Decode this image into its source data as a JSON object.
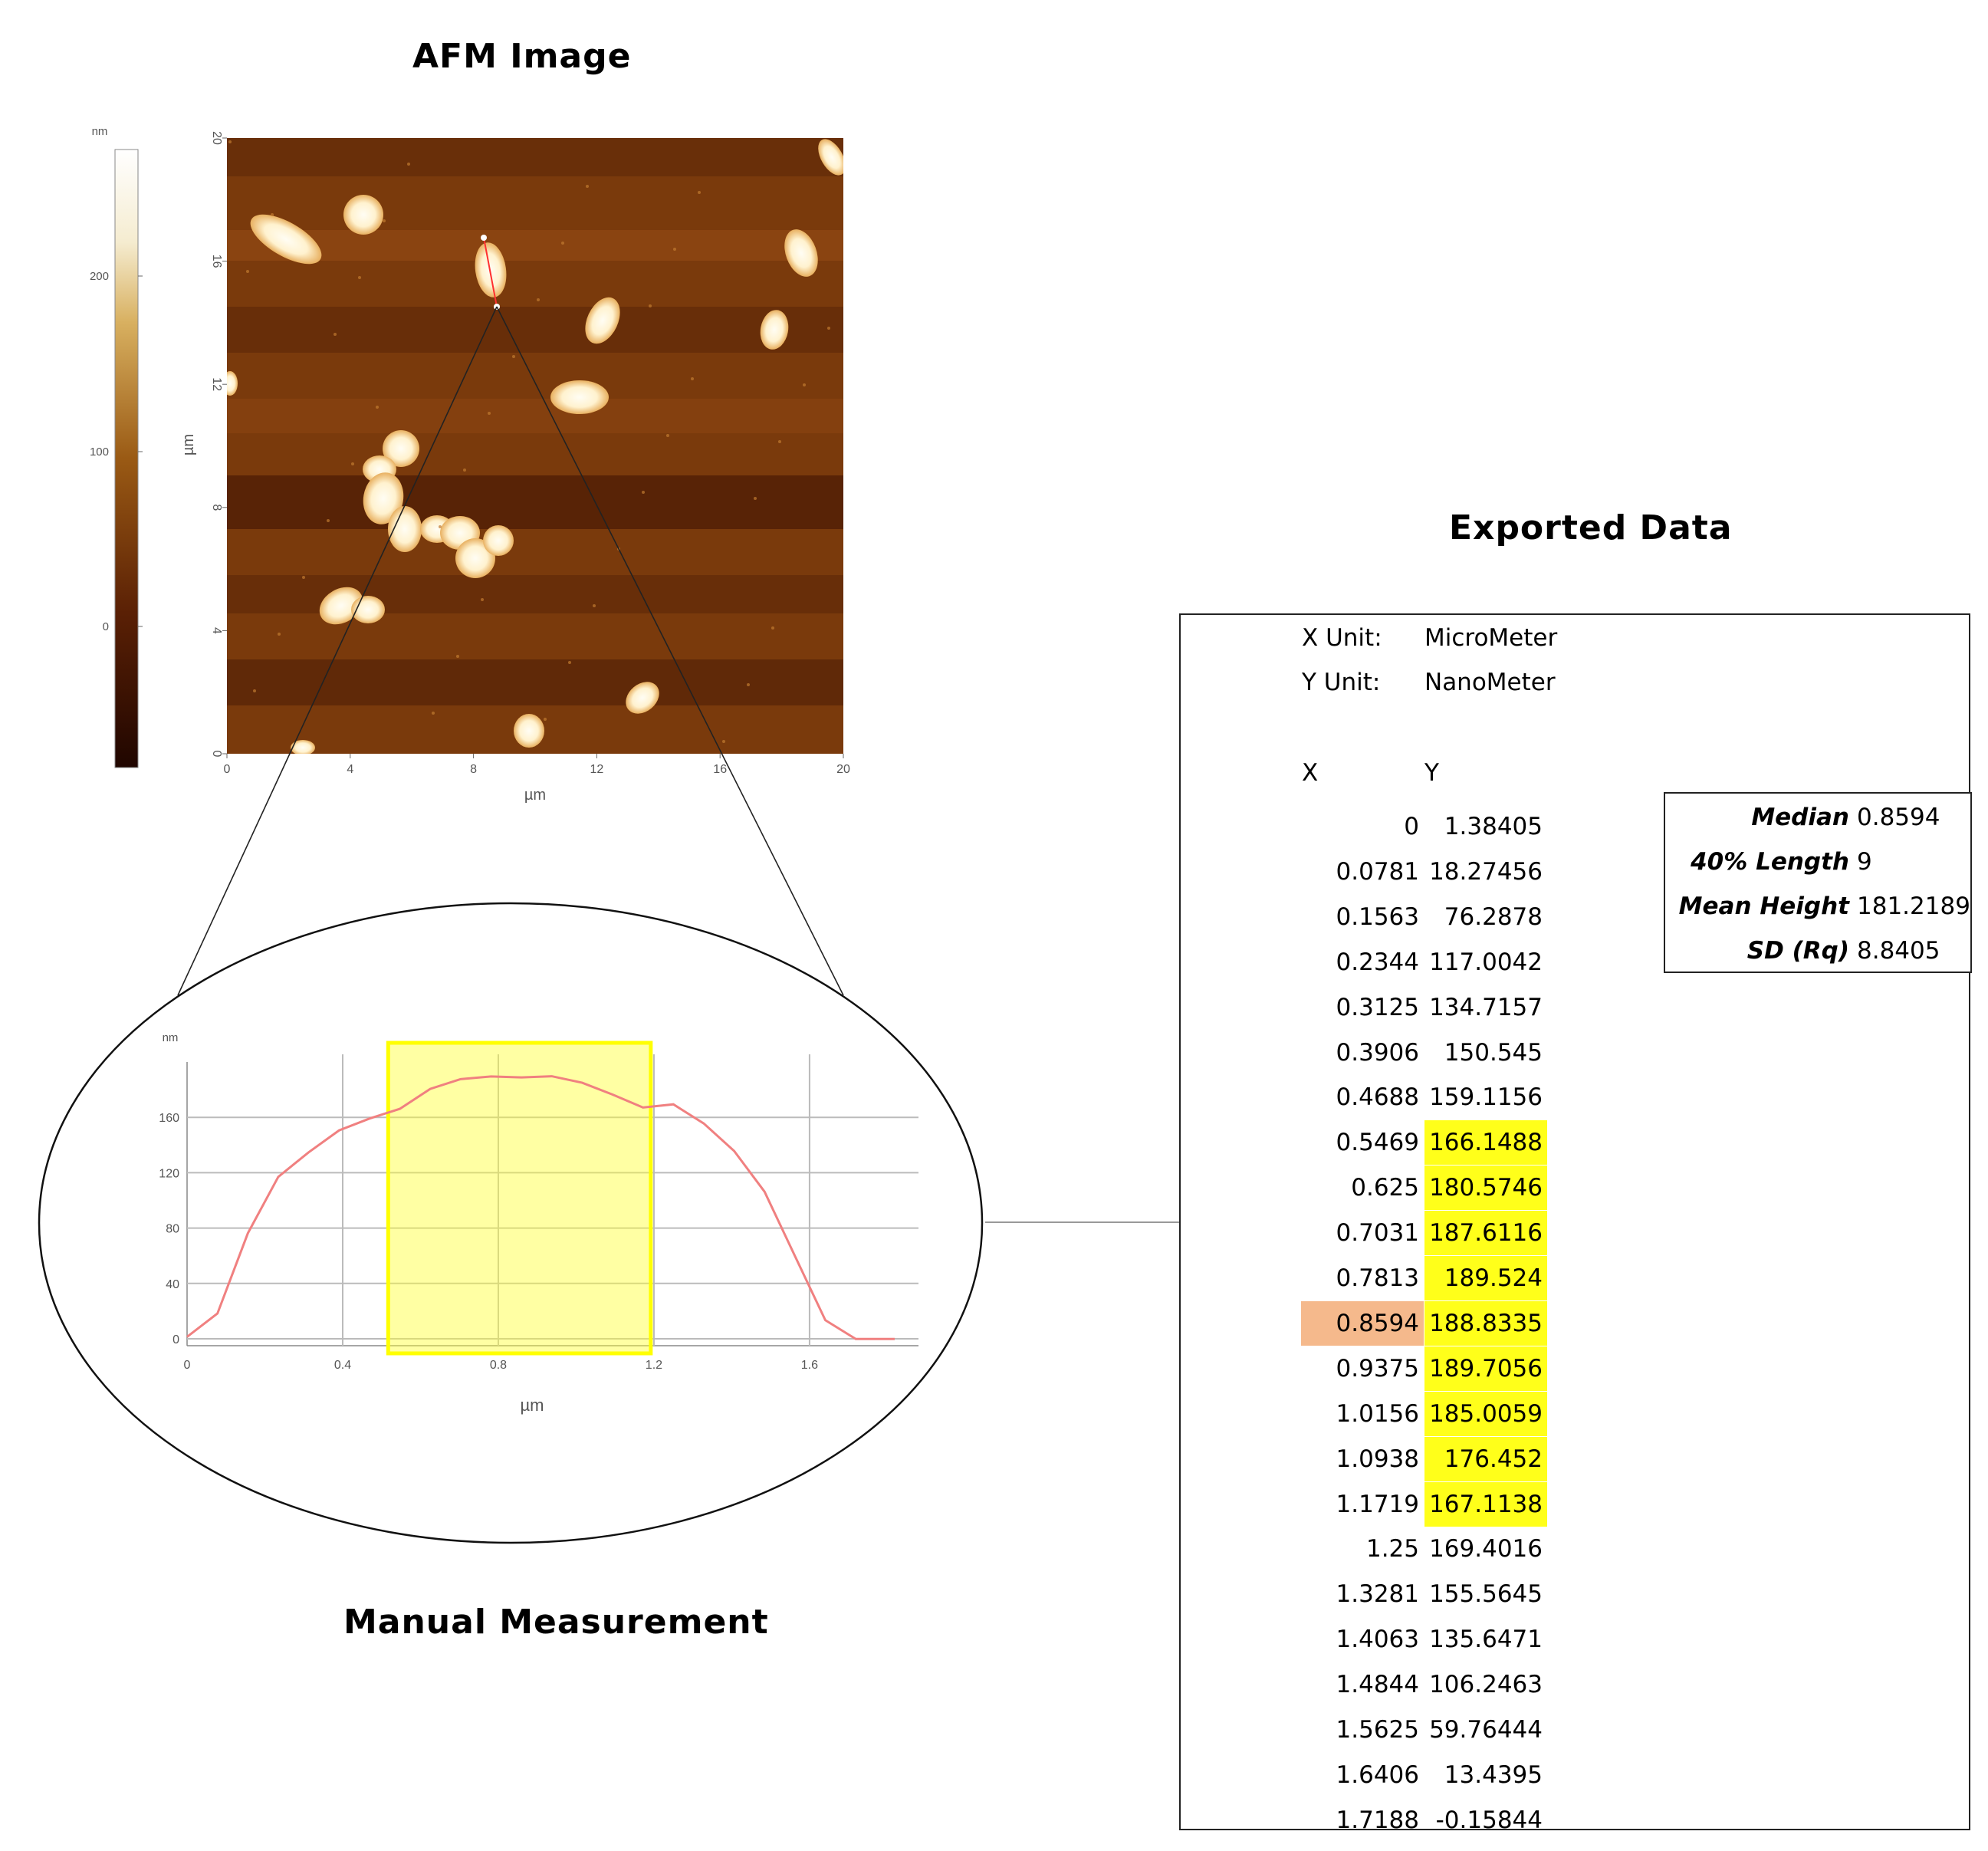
{
  "titles": {
    "afm": "AFM Image",
    "manual": "Manual Measurement",
    "exported": "Exported Data"
  },
  "afm_image": {
    "colorbar_unit": "nm",
    "colorbar_ticks": [
      "0",
      "100",
      "200"
    ],
    "x_ticks": [
      "0",
      "4",
      "8",
      "12",
      "16",
      "20"
    ],
    "y_ticks": [
      "0",
      "4",
      "8",
      "12",
      "16",
      "20"
    ],
    "x_label": "µm",
    "y_label": "µm",
    "colors": {
      "dark": "#3a1200",
      "mid": "#7a3a0c",
      "bright": "#fff6e0"
    }
  },
  "profile": {
    "y_unit": "nm",
    "x_label": "µm",
    "x_ticks": [
      "0",
      "0.4",
      "0.8",
      "1.2",
      "1.6"
    ],
    "y_ticks": [
      "0",
      "40",
      "80",
      "120",
      "160"
    ],
    "highlight_color": "#ffff33",
    "line_color": "#f08080",
    "chart_data": {
      "type": "line",
      "x": [
        0,
        0.0781,
        0.1563,
        0.2344,
        0.3125,
        0.3906,
        0.4688,
        0.5469,
        0.625,
        0.7031,
        0.7813,
        0.8594,
        0.9375,
        1.0156,
        1.0938,
        1.1719,
        1.25,
        1.3281,
        1.4063,
        1.4844,
        1.5625,
        1.6406,
        1.7188
      ],
      "y": [
        1.38405,
        18.27456,
        76.2878,
        117.0042,
        134.7157,
        150.545,
        159.1156,
        166.1488,
        180.5746,
        187.6116,
        189.524,
        188.8335,
        189.7056,
        185.0059,
        176.452,
        167.1138,
        169.4016,
        155.5645,
        135.6471,
        106.2463,
        59.76444,
        13.4395,
        -0.15844
      ],
      "xlim": [
        0,
        1.88
      ],
      "ylim": [
        -5,
        200
      ]
    }
  },
  "exported": {
    "x_unit_label": "X Unit:",
    "x_unit_value": "MicroMeter",
    "y_unit_label": "Y Unit:",
    "y_unit_value": "NanoMeter",
    "col_x": "X",
    "col_y": "Y",
    "rows": [
      {
        "x": "0",
        "y": "1.38405"
      },
      {
        "x": "0.0781",
        "y": "18.27456"
      },
      {
        "x": "0.1563",
        "y": "76.2878"
      },
      {
        "x": "0.2344",
        "y": "117.0042"
      },
      {
        "x": "0.3125",
        "y": "134.7157"
      },
      {
        "x": "0.3906",
        "y": "150.545"
      },
      {
        "x": "0.4688",
        "y": "159.1156"
      },
      {
        "x": "0.5469",
        "y": "166.1488",
        "hl": true
      },
      {
        "x": "0.625",
        "y": "180.5746",
        "hl": true
      },
      {
        "x": "0.7031",
        "y": "187.6116",
        "hl": true
      },
      {
        "x": "0.7813",
        "y": "189.524",
        "hl": true
      },
      {
        "x": "0.8594",
        "y": "188.8335",
        "hl": true,
        "median": true
      },
      {
        "x": "0.9375",
        "y": "189.7056",
        "hl": true
      },
      {
        "x": "1.0156",
        "y": "185.0059",
        "hl": true
      },
      {
        "x": "1.0938",
        "y": "176.452",
        "hl": true
      },
      {
        "x": "1.1719",
        "y": "167.1138",
        "hl": true
      },
      {
        "x": "1.25",
        "y": "169.4016"
      },
      {
        "x": "1.3281",
        "y": "155.5645"
      },
      {
        "x": "1.4063",
        "y": "135.6471"
      },
      {
        "x": "1.4844",
        "y": "106.2463"
      },
      {
        "x": "1.5625",
        "y": "59.76444"
      },
      {
        "x": "1.6406",
        "y": "13.4395"
      },
      {
        "x": "1.7188",
        "y": "-0.15844"
      }
    ],
    "highlight_color": "#ffff1a",
    "median_color": "#f5b98c"
  },
  "stats": [
    {
      "label": "Median",
      "value": "0.8594"
    },
    {
      "label": "40% Length",
      "value": "9"
    },
    {
      "label": "Mean Height",
      "value": "181.2189"
    },
    {
      "label": "SD (Rq)",
      "value": "8.8405"
    }
  ]
}
